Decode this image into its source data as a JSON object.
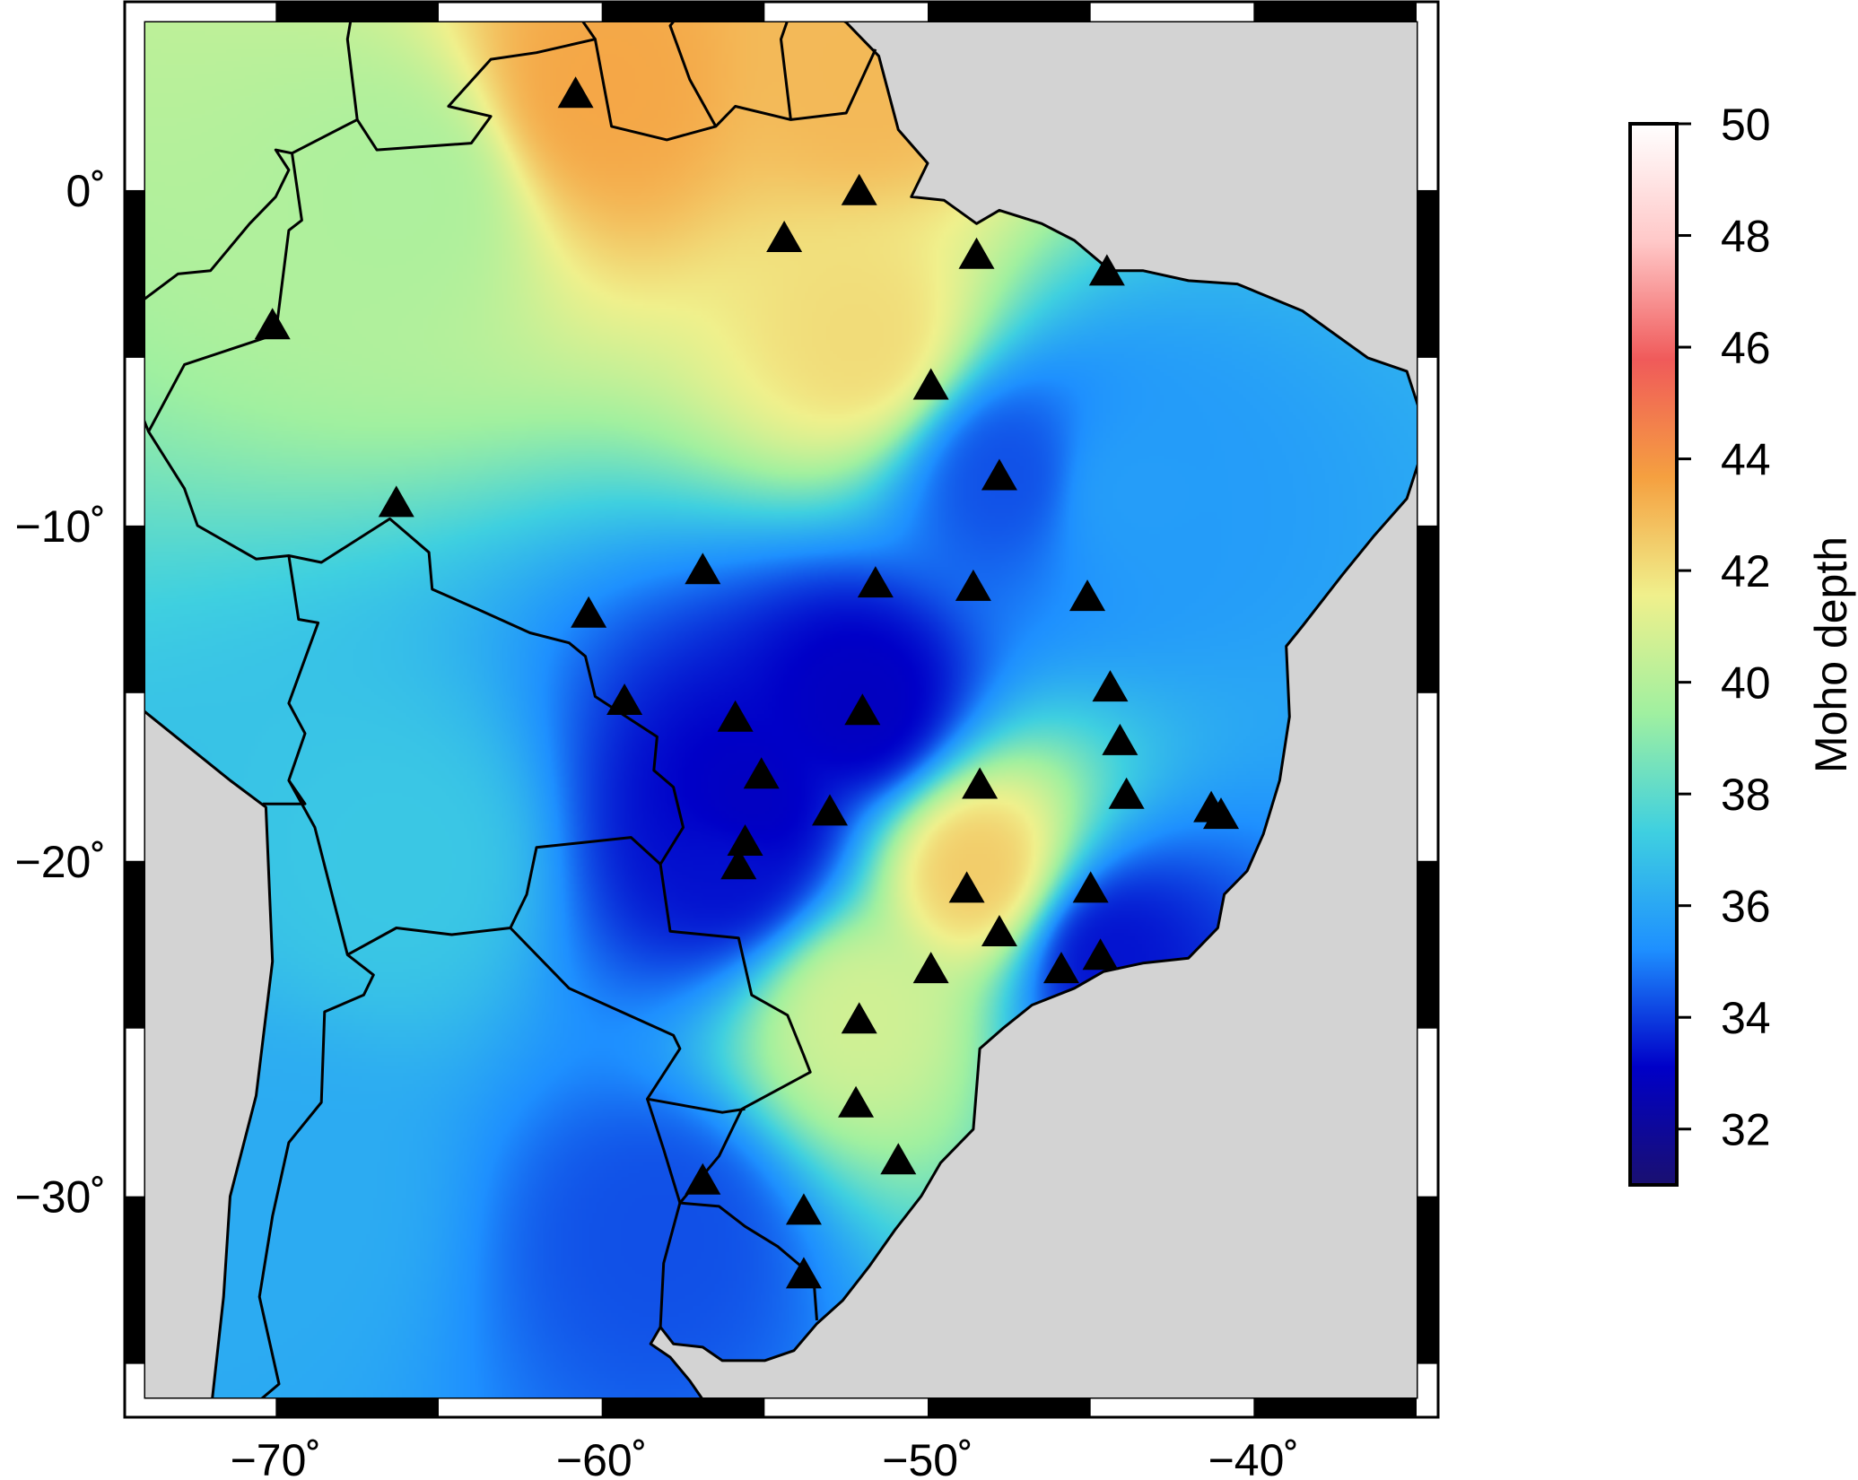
{
  "map": {
    "lon_range": [
      -74,
      -35
    ],
    "lat_range": [
      -36,
      5
    ],
    "ocean_color": "#d3d3d3",
    "border_color": "#000000",
    "x_axis_labels": [
      "−70˚",
      "−60˚",
      "−50˚",
      "−40˚"
    ],
    "y_axis_labels": [
      "0˚",
      "−10˚",
      "−20˚",
      "−30˚"
    ],
    "x_axis_values": [
      -70,
      -60,
      -50,
      -40
    ],
    "y_axis_values": [
      0,
      -10,
      -20,
      -30
    ]
  },
  "colorbar": {
    "title": "Moho depth",
    "min": 31,
    "max": 50,
    "tick_values": [
      32,
      34,
      36,
      38,
      40,
      42,
      44,
      46,
      48,
      50
    ],
    "tick_labels": [
      "32",
      "34",
      "36",
      "38",
      "40",
      "42",
      "44",
      "46",
      "48",
      "50"
    ],
    "colors": [
      "#1a1070",
      "#0000c8",
      "#1e90ff",
      "#3fd0e0",
      "#a0f0a0",
      "#f0f08c",
      "#f5a040",
      "#f05a5a",
      "#ffc8c8",
      "#ffffff"
    ]
  },
  "stations": [
    {
      "lon": -60.8,
      "lat": 2.8
    },
    {
      "lon": -52.1,
      "lat": -0.1
    },
    {
      "lon": -54.4,
      "lat": -1.5
    },
    {
      "lon": -48.5,
      "lat": -2.0
    },
    {
      "lon": -44.5,
      "lat": -2.5
    },
    {
      "lon": -70.1,
      "lat": -4.1
    },
    {
      "lon": -49.9,
      "lat": -5.9
    },
    {
      "lon": -47.8,
      "lat": -8.6
    },
    {
      "lon": -66.3,
      "lat": -9.4
    },
    {
      "lon": -56.9,
      "lat": -11.4
    },
    {
      "lon": -51.6,
      "lat": -11.8
    },
    {
      "lon": -48.6,
      "lat": -11.9
    },
    {
      "lon": -45.1,
      "lat": -12.2
    },
    {
      "lon": -60.4,
      "lat": -12.7
    },
    {
      "lon": -44.4,
      "lat": -14.9
    },
    {
      "lon": -59.3,
      "lat": -15.3
    },
    {
      "lon": -55.9,
      "lat": -15.8
    },
    {
      "lon": -52.0,
      "lat": -15.6
    },
    {
      "lon": -44.1,
      "lat": -16.5
    },
    {
      "lon": -55.1,
      "lat": -17.5
    },
    {
      "lon": -48.4,
      "lat": -17.8
    },
    {
      "lon": -43.9,
      "lat": -18.1
    },
    {
      "lon": -53.0,
      "lat": -18.6
    },
    {
      "lon": -41.3,
      "lat": -18.5
    },
    {
      "lon": -41.0,
      "lat": -18.7
    },
    {
      "lon": -55.6,
      "lat": -19.5
    },
    {
      "lon": -55.8,
      "lat": -20.2
    },
    {
      "lon": -48.8,
      "lat": -20.9
    },
    {
      "lon": -45.0,
      "lat": -20.9
    },
    {
      "lon": -47.8,
      "lat": -22.2
    },
    {
      "lon": -49.9,
      "lat": -23.3
    },
    {
      "lon": -45.9,
      "lat": -23.3
    },
    {
      "lon": -44.7,
      "lat": -22.9
    },
    {
      "lon": -52.1,
      "lat": -24.8
    },
    {
      "lon": -52.2,
      "lat": -27.3
    },
    {
      "lon": -50.9,
      "lat": -29.0
    },
    {
      "lon": -56.9,
      "lat": -29.6
    },
    {
      "lon": -53.8,
      "lat": -30.5
    },
    {
      "lon": -53.8,
      "lat": -32.4
    }
  ],
  "moho_anomalies": [
    {
      "lon": -60,
      "lat": 3,
      "depth": 44
    },
    {
      "lon": -52,
      "lat": 3.5,
      "depth": 43.5
    },
    {
      "lon": -52,
      "lat": -4.5,
      "depth": 42.5
    },
    {
      "lon": -47.5,
      "lat": -8.5,
      "depth": 34
    },
    {
      "lon": -44,
      "lat": -9,
      "depth": 35.5
    },
    {
      "lon": -52,
      "lat": -15.5,
      "depth": 32.5
    },
    {
      "lon": -55.5,
      "lat": -18.5,
      "depth": 32.5
    },
    {
      "lon": -56,
      "lat": -20,
      "depth": 33
    },
    {
      "lon": -48.5,
      "lat": -20.3,
      "depth": 43
    },
    {
      "lon": -52.1,
      "lat": -24.5,
      "depth": 41
    },
    {
      "lon": -44.5,
      "lat": -22.8,
      "depth": 33
    },
    {
      "lon": -58,
      "lat": -31,
      "depth": 34
    },
    {
      "lon": -70,
      "lat": -30,
      "depth": 36
    },
    {
      "lon": -66,
      "lat": 0,
      "depth": 40
    },
    {
      "lon": -66,
      "lat": -20,
      "depth": 37
    }
  ]
}
